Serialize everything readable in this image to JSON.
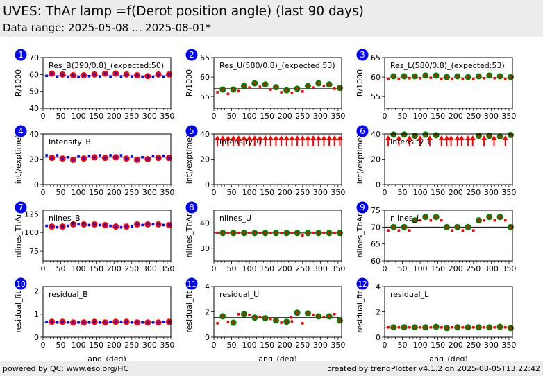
{
  "header": {
    "title": "UVES: ThAr lamp =f(Derot position angle) (last 90 days)",
    "subtitle": "Data range: 2025-05-08 ... 2025-08-01*"
  },
  "footer": {
    "left": "powered by QC: www.eso.org/HC",
    "right": "created by trendPlotter v4.1.2 on 2025-08-05T13:22:42"
  },
  "colors": {
    "header_bg": "#ececec",
    "badge": "#0000ff",
    "blue_points": "#0000ff",
    "red_points": "#ff0000",
    "green_points": "#008000",
    "reference_line": "#000000"
  },
  "chart_data": [
    {
      "id": 1,
      "type": "scatter",
      "label": "Res_B(390/0.8)_(expected:50)",
      "ylabel": "R/1000",
      "xlabel": "",
      "xlim": [
        0,
        360
      ],
      "ylim": [
        40,
        70
      ],
      "yticks": [
        40,
        50,
        60,
        70
      ],
      "xticks": [
        0,
        50,
        100,
        150,
        200,
        250,
        300,
        350
      ],
      "reference": 59.2,
      "large": {
        "color": "red",
        "x": [
          25,
          55,
          85,
          115,
          145,
          175,
          205,
          235,
          265,
          295,
          325,
          355
        ],
        "y": [
          60.5,
          60,
          59.5,
          59.5,
          60,
          60.5,
          60.5,
          60,
          59.5,
          59,
          60,
          60
        ]
      },
      "small": {
        "color": "blue",
        "x": [
          10,
          40,
          70,
          100,
          130,
          160,
          190,
          220,
          250,
          280,
          310,
          340
        ],
        "y": [
          59.2,
          58.8,
          58.5,
          58.5,
          59,
          58.8,
          58.8,
          58.8,
          58.8,
          58.5,
          58.5,
          58.8
        ]
      },
      "inner": {
        "color": "blue"
      }
    },
    {
      "id": 2,
      "type": "scatter",
      "label": "Res_U(580/0.8)_(expected:53)",
      "ylabel": "R/1000",
      "xlabel": "",
      "xlim": [
        0,
        360
      ],
      "ylim": [
        52,
        65
      ],
      "yticks": [
        55,
        60,
        65
      ],
      "xticks": [
        0,
        50,
        100,
        150,
        200,
        250,
        300,
        350
      ],
      "reference": 57,
      "large": {
        "color": "green",
        "x": [
          25,
          55,
          85,
          115,
          145,
          175,
          205,
          235,
          265,
          295,
          325,
          355
        ],
        "y": [
          56.8,
          56.8,
          57.7,
          58.4,
          58.1,
          57.4,
          56.6,
          57,
          57.7,
          58.4,
          58.1,
          57.2
        ]
      },
      "small": {
        "color": "red",
        "x": [
          10,
          40,
          70,
          100,
          130,
          160,
          190,
          220,
          250,
          280,
          310,
          340
        ],
        "y": [
          56.1,
          55.7,
          56.4,
          57.3,
          57.5,
          56.8,
          56.1,
          55.9,
          56.3,
          57.3,
          57.7,
          57
        ]
      },
      "inner": {
        "color": "red"
      }
    },
    {
      "id": 3,
      "type": "scatter",
      "label": "Res_L(580/0.8)_(expected:53)",
      "ylabel": "R/1000",
      "xlabel": "",
      "xlim": [
        0,
        360
      ],
      "ylim": [
        52,
        65
      ],
      "yticks": [
        55,
        60,
        65
      ],
      "xticks": [
        0,
        50,
        100,
        150,
        200,
        250,
        300,
        350
      ],
      "reference": 59.8,
      "large": {
        "color": "green",
        "x": [
          25,
          55,
          85,
          115,
          145,
          175,
          205,
          235,
          265,
          295,
          325,
          355
        ],
        "y": [
          60.2,
          60.2,
          60.2,
          60.4,
          60.4,
          60,
          60.2,
          60,
          60.2,
          60.4,
          60.2,
          60
        ]
      },
      "small": {
        "color": "red",
        "x": [
          10,
          40,
          70,
          100,
          130,
          160,
          190,
          220,
          250,
          280,
          310,
          340
        ],
        "y": [
          59.5,
          59.5,
          59.7,
          59.7,
          59.8,
          59.5,
          59.5,
          59.5,
          59.5,
          59.7,
          59.7,
          59.5
        ]
      },
      "inner": {
        "color": "red"
      }
    },
    {
      "id": 4,
      "type": "scatter",
      "label": "Intensity_B",
      "ylabel": "int(/exptime)",
      "xlabel": "",
      "xlim": [
        0,
        360
      ],
      "ylim": [
        0,
        40
      ],
      "yticks": [
        0,
        20,
        40
      ],
      "xticks": [
        0,
        50,
        100,
        150,
        200,
        250,
        300,
        350
      ],
      "reference": 21.5,
      "large": {
        "color": "red",
        "x": [
          25,
          55,
          85,
          115,
          145,
          175,
          205,
          235,
          265,
          295,
          325,
          355
        ],
        "y": [
          21,
          20.5,
          19.5,
          20.5,
          21.5,
          21,
          21.5,
          20.5,
          19.5,
          20,
          21,
          21
        ]
      },
      "small": {
        "color": "blue",
        "x": [
          10,
          40,
          70,
          100,
          130,
          160,
          190,
          220,
          250,
          280,
          310,
          340
        ],
        "y": [
          23,
          23,
          21.5,
          22,
          22.5,
          23,
          23,
          23,
          22,
          21.5,
          22.5,
          22.5
        ]
      },
      "inner": {
        "color": "blue"
      }
    },
    {
      "id": 5,
      "type": "scatter",
      "label": "Intensity_U",
      "ylabel": "int(/exptime)",
      "xlabel": "",
      "xlim": [
        0,
        360
      ],
      "ylim": [
        0,
        40
      ],
      "yticks": [
        0,
        20,
        40
      ],
      "xticks": [
        0,
        50,
        100,
        150,
        200,
        250,
        300,
        350
      ],
      "reference": null,
      "offscale_arrows": {
        "color": "red",
        "x": [
          10,
          25,
          40,
          55,
          70,
          85,
          100,
          115,
          130,
          145,
          160,
          175,
          190,
          205,
          220,
          235,
          250,
          265,
          280,
          295,
          310,
          325,
          340,
          355
        ]
      },
      "large": {
        "color": "green",
        "x": [],
        "y": []
      },
      "small": {
        "color": "red",
        "x": [],
        "y": []
      }
    },
    {
      "id": 6,
      "type": "scatter",
      "label": "Intensity_L",
      "ylabel": "int(/exptime)",
      "xlabel": "",
      "xlim": [
        0,
        360
      ],
      "ylim": [
        0,
        40
      ],
      "yticks": [
        0,
        20,
        40
      ],
      "xticks": [
        0,
        50,
        100,
        150,
        200,
        250,
        300,
        350
      ],
      "reference": null,
      "offscale_arrows": {
        "color": "red",
        "x": [
          10,
          40,
          70,
          100,
          127,
          160,
          175,
          187,
          205,
          217,
          235,
          248,
          280,
          308,
          340
        ]
      },
      "large": {
        "color": "green",
        "x": [
          25,
          55,
          85,
          115,
          145,
          265,
          295,
          325,
          355
        ],
        "y": [
          39.5,
          39.5,
          38.5,
          39.5,
          39,
          38.5,
          38.5,
          38,
          39.2
        ]
      },
      "small": {
        "color": "red",
        "x": [],
        "y": []
      },
      "inner": {
        "color": "red"
      }
    },
    {
      "id": 7,
      "type": "scatter",
      "label": "nlines_B",
      "ylabel": "nlines_ThAr",
      "xlabel": "",
      "xlim": [
        0,
        360
      ],
      "ylim": [
        62,
        130
      ],
      "yticks": [
        75,
        100,
        125
      ],
      "xticks": [
        0,
        50,
        100,
        150,
        200,
        250,
        300,
        350
      ],
      "reference": 110,
      "large": {
        "color": "red",
        "x": [
          25,
          55,
          85,
          115,
          145,
          175,
          205,
          235,
          265,
          295,
          325,
          355
        ],
        "y": [
          108,
          108,
          111,
          111,
          111,
          110,
          108,
          108,
          111,
          111,
          111,
          110
        ]
      },
      "small": {
        "color": "blue",
        "x": [
          10,
          40,
          70,
          100,
          130,
          160,
          190,
          220,
          250,
          280,
          310,
          340
        ],
        "y": [
          109,
          107,
          109,
          111,
          110,
          110,
          109,
          107,
          108,
          110,
          111,
          110
        ]
      },
      "inner": {
        "color": "blue"
      }
    },
    {
      "id": 8,
      "type": "scatter",
      "label": "nlines_U",
      "ylabel": "nlines_ThAr",
      "xlabel": "",
      "xlim": [
        0,
        360
      ],
      "ylim": [
        25,
        45
      ],
      "yticks": [
        30,
        40
      ],
      "xticks": [
        0,
        50,
        100,
        150,
        200,
        250,
        300,
        350
      ],
      "reference": 36,
      "large": {
        "color": "green",
        "x": [
          25,
          55,
          85,
          115,
          145,
          175,
          205,
          235,
          265,
          295,
          325,
          355
        ],
        "y": [
          36,
          36,
          36,
          36,
          36,
          36,
          36,
          36,
          36,
          36,
          36,
          36
        ]
      },
      "small": {
        "color": "red",
        "x": [
          10,
          40,
          70,
          100,
          130,
          160,
          190,
          220,
          250,
          280,
          310,
          340
        ],
        "y": [
          36,
          36,
          36,
          36,
          36,
          36,
          36,
          36,
          35,
          36,
          36,
          36
        ]
      },
      "inner": {
        "color": "red"
      }
    },
    {
      "id": 9,
      "type": "scatter",
      "label": "nlines_L",
      "ylabel": "nlines_ThAr",
      "xlabel": "",
      "xlim": [
        0,
        360
      ],
      "ylim": [
        60,
        75
      ],
      "yticks": [
        60,
        65,
        70,
        75
      ],
      "xticks": [
        0,
        50,
        100,
        150,
        200,
        250,
        300,
        350
      ],
      "reference": 70,
      "large": {
        "color": "green",
        "x": [
          25,
          55,
          85,
          115,
          145,
          175,
          205,
          235,
          265,
          295,
          325,
          355
        ],
        "y": [
          70,
          70,
          72,
          73,
          73,
          70,
          70,
          70,
          72,
          73,
          73,
          70
        ]
      },
      "small": {
        "color": "red",
        "x": [
          10,
          40,
          70,
          100,
          130,
          160,
          190,
          220,
          250,
          280,
          310,
          340
        ],
        "y": [
          69,
          69,
          69,
          72,
          72,
          72,
          69,
          69,
          69,
          72,
          72,
          72
        ]
      },
      "inner": {
        "color": "red"
      }
    },
    {
      "id": 10,
      "type": "scatter",
      "label": "residual_B",
      "ylabel": "residual_fit",
      "xlabel": "ang_(deg)",
      "xlim": [
        0,
        360
      ],
      "ylim": [
        0,
        2.2
      ],
      "yticks": [
        0,
        1,
        2
      ],
      "xticks": [
        0,
        50,
        100,
        150,
        200,
        250,
        300,
        350
      ],
      "reference": 0.63,
      "large": {
        "color": "red",
        "x": [
          25,
          55,
          85,
          115,
          145,
          175,
          205,
          235,
          265,
          295,
          325,
          355
        ],
        "y": [
          0.67,
          0.67,
          0.64,
          0.64,
          0.67,
          0.64,
          0.67,
          0.67,
          0.64,
          0.64,
          0.64,
          0.67
        ]
      },
      "small": {
        "color": "blue",
        "x": [
          10,
          40,
          70,
          100,
          130,
          160,
          190,
          220,
          250,
          280,
          310,
          340
        ],
        "y": [
          0.67,
          0.64,
          0.64,
          0.64,
          0.64,
          0.64,
          0.67,
          0.67,
          0.64,
          0.64,
          0.64,
          0.67
        ]
      },
      "inner": {
        "color": "blue"
      }
    },
    {
      "id": 11,
      "type": "scatter",
      "label": "residual_U",
      "ylabel": "residual_fit",
      "xlabel": "ang_(deg)",
      "xlim": [
        0,
        360
      ],
      "ylim": [
        0,
        4
      ],
      "yticks": [
        0,
        2,
        4
      ],
      "xticks": [
        0,
        50,
        100,
        150,
        200,
        250,
        300,
        350
      ],
      "reference": 1.55,
      "large": {
        "color": "green",
        "x": [
          25,
          55,
          85,
          115,
          145,
          175,
          205,
          235,
          265,
          295,
          325,
          355
        ],
        "y": [
          1.65,
          1.15,
          1.82,
          1.55,
          1.5,
          1.32,
          1.22,
          1.93,
          1.88,
          1.65,
          1.65,
          1.32
        ]
      },
      "small": {
        "color": "red",
        "x": [
          10,
          40,
          70,
          100,
          130,
          160,
          190,
          220,
          250,
          280,
          310,
          340
        ],
        "y": [
          1.1,
          1.2,
          1.82,
          1.77,
          1.6,
          1.45,
          1.15,
          1.25,
          1.1,
          1.77,
          1.6,
          1.82
        ]
      },
      "extra_small": {
        "color": "red",
        "x": [
          218
        ],
        "y": [
          1.55
        ]
      },
      "inner": {
        "color": "red"
      }
    },
    {
      "id": 12,
      "type": "scatter",
      "label": "residual_L",
      "ylabel": "residual_fit",
      "xlabel": "ang_(deg)",
      "xlim": [
        0,
        360
      ],
      "ylim": [
        0,
        4
      ],
      "yticks": [
        0,
        2,
        4
      ],
      "xticks": [
        0,
        50,
        100,
        150,
        200,
        250,
        300,
        350
      ],
      "reference": 0.78,
      "large": {
        "color": "green",
        "x": [
          25,
          55,
          85,
          115,
          145,
          175,
          205,
          235,
          265,
          295,
          325,
          355
        ],
        "y": [
          0.78,
          0.78,
          0.78,
          0.78,
          0.82,
          0.72,
          0.78,
          0.78,
          0.78,
          0.78,
          0.82,
          0.72
        ]
      },
      "small": {
        "color": "red",
        "x": [
          10,
          40,
          70,
          100,
          130,
          160,
          190,
          220,
          250,
          280,
          310,
          340
        ],
        "y": [
          0.78,
          0.78,
          0.78,
          0.78,
          0.78,
          0.78,
          0.78,
          0.78,
          0.78,
          0.78,
          0.78,
          0.78
        ]
      },
      "inner": {
        "color": "red"
      }
    }
  ]
}
